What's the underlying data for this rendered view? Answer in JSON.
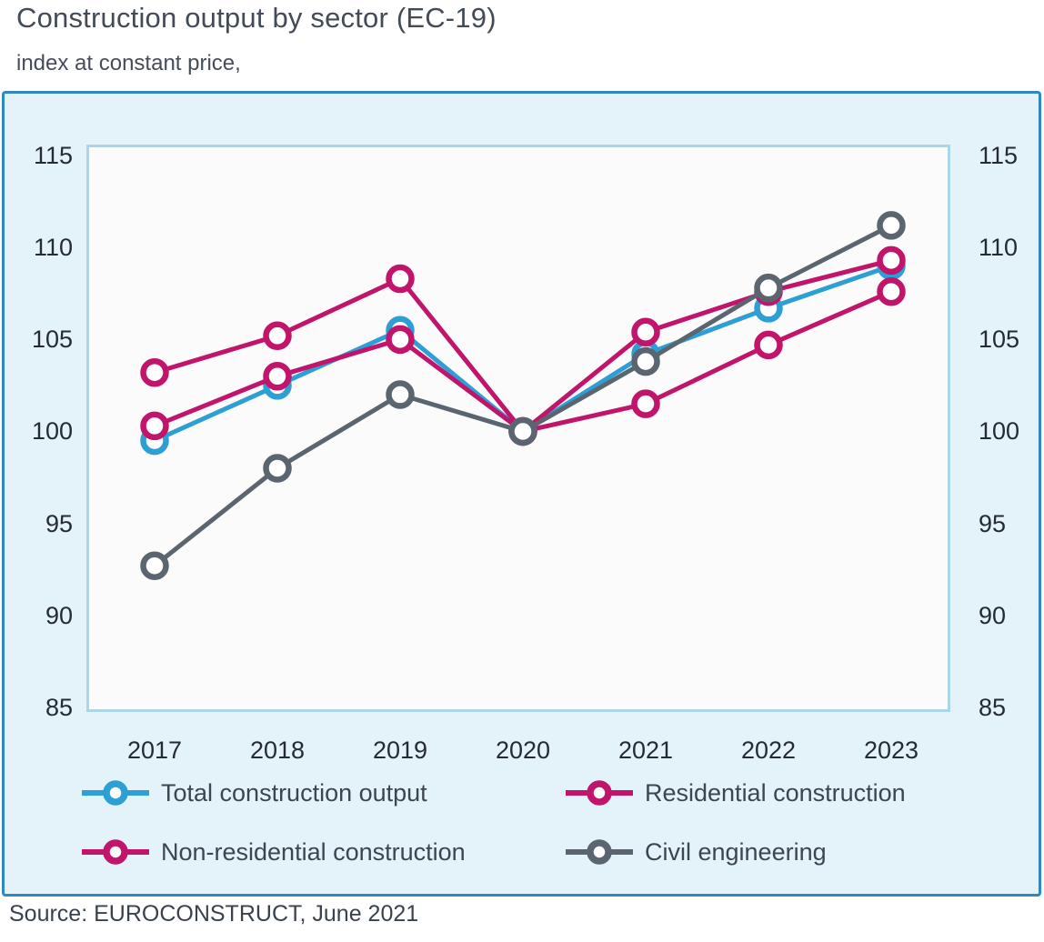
{
  "header": {
    "title": "Construction output by sector (EC-19)",
    "subtitle": "index at constant price,"
  },
  "source": "Source: EUROCONSTRUCT, June 2021",
  "colors": {
    "panel_border": "#2f88c5",
    "panel_bg": "#e4f3f9",
    "plot_border": "#a9d6e8",
    "plot_bg": "#fbfbfb",
    "total_blue": "#2e9fd4",
    "residential_magenta": "#c1146b",
    "non_residential_magenta": "#c1146b",
    "civil_gray": "#5b6570"
  },
  "chart_data": {
    "type": "line",
    "title": "Construction output by sector (EC-19)",
    "subtitle": "index at constant price,",
    "categories": [
      "2017",
      "2018",
      "2019",
      "2020",
      "2021",
      "2022",
      "2023"
    ],
    "series": [
      {
        "name": "Total construction output",
        "color": "#2e9fd4",
        "values": [
          99.5,
          102.5,
          105.5,
          100,
          104.2,
          106.7,
          109.0
        ]
      },
      {
        "name": "Residential construction",
        "color": "#c1146b",
        "values": [
          100.3,
          103.0,
          105.0,
          100,
          105.4,
          107.6,
          109.3
        ]
      },
      {
        "name": "Non-residential construction",
        "color": "#c1146b",
        "values": [
          103.2,
          105.2,
          108.3,
          100,
          101.5,
          104.7,
          107.6
        ]
      },
      {
        "name": "Civil engineering",
        "color": "#5b6570",
        "values": [
          92.7,
          98.0,
          102.0,
          100,
          103.8,
          107.8,
          111.2
        ]
      }
    ],
    "ylim": [
      85,
      115
    ],
    "yticks": [
      115,
      110,
      105,
      100,
      95,
      90,
      85
    ],
    "xlabel": "",
    "ylabel": "",
    "grid": false,
    "legend_position": "bottom",
    "marker": "open-circle"
  }
}
